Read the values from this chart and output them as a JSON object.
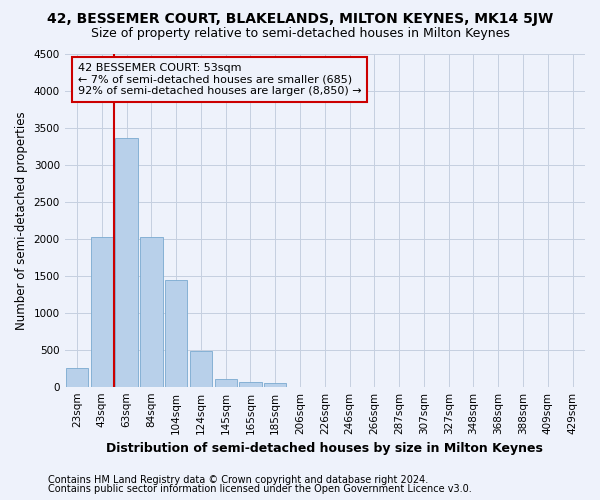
{
  "title": "42, BESSEMER COURT, BLAKELANDS, MILTON KEYNES, MK14 5JW",
  "subtitle": "Size of property relative to semi-detached houses in Milton Keynes",
  "xlabel": "Distribution of semi-detached houses by size in Milton Keynes",
  "ylabel": "Number of semi-detached properties",
  "footer1": "Contains HM Land Registry data © Crown copyright and database right 2024.",
  "footer2": "Contains public sector information licensed under the Open Government Licence v3.0.",
  "categories": [
    "23sqm",
    "43sqm",
    "63sqm",
    "84sqm",
    "104sqm",
    "124sqm",
    "145sqm",
    "165sqm",
    "185sqm",
    "206sqm",
    "226sqm",
    "246sqm",
    "266sqm",
    "287sqm",
    "307sqm",
    "327sqm",
    "348sqm",
    "368sqm",
    "388sqm",
    "409sqm",
    "429sqm"
  ],
  "values": [
    250,
    2030,
    3360,
    2020,
    1440,
    480,
    100,
    60,
    50,
    0,
    0,
    0,
    0,
    0,
    0,
    0,
    0,
    0,
    0,
    0,
    0
  ],
  "bar_color": "#b8d0ea",
  "bar_edge_color": "#7aaad0",
  "ylim": [
    0,
    4500
  ],
  "yticks": [
    0,
    500,
    1000,
    1500,
    2000,
    2500,
    3000,
    3500,
    4000,
    4500
  ],
  "annotation_line1": "42 BESSEMER COURT: 53sqm",
  "annotation_line2": "← 7% of semi-detached houses are smaller (685)",
  "annotation_line3": "92% of semi-detached houses are larger (8,850) →",
  "vline_color": "#cc0000",
  "annotation_box_edgecolor": "#cc0000",
  "bg_color": "#eef2fb",
  "grid_color": "#c5cfe0",
  "title_fontsize": 10,
  "subtitle_fontsize": 9,
  "axis_label_fontsize": 8.5,
  "tick_fontsize": 7.5,
  "footer_fontsize": 7
}
